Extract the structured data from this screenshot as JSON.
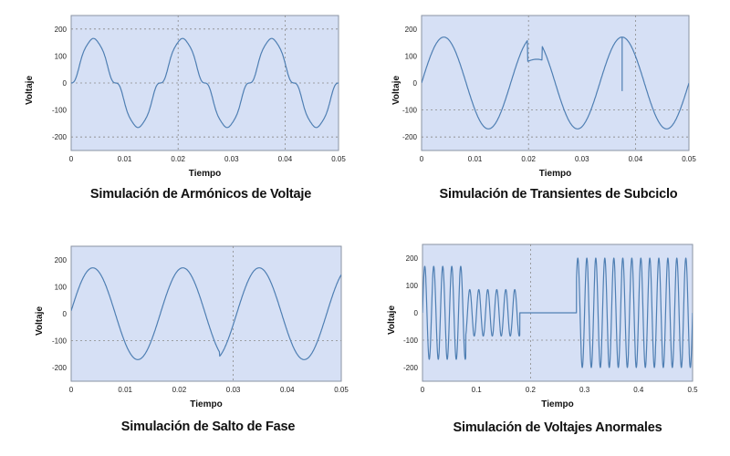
{
  "colors": {
    "plot_background": "#d6e0f5",
    "line": "#4f7fb3",
    "grid": "#8a8a8a",
    "frame": "#8a93a3"
  },
  "chart_data": [
    {
      "id": "armonicos",
      "type": "line",
      "title": "Simulación de Armónicos de Voltaje",
      "xlabel": "Tiempo",
      "ylabel": "Voltaje",
      "xlim": [
        0,
        0.05
      ],
      "ylim": [
        -250,
        250
      ],
      "xticks": [
        0,
        0.01,
        0.02,
        0.03,
        0.04,
        0.05
      ],
      "xtick_labels": [
        "0",
        "0.01",
        "0.02",
        "0.03",
        "0.04",
        "0.05"
      ],
      "yticks": [
        -200,
        -100,
        0,
        100,
        200
      ],
      "ytick_labels": [
        "-200",
        "-100",
        "0",
        "100",
        "200"
      ],
      "grid_x": [
        0.02,
        0.04
      ],
      "grid_y": [
        -200,
        0,
        200
      ],
      "series": [
        {
          "kind": "harmonic",
          "frequency_hz": 60,
          "amplitude": 150,
          "harmonics": [
            [
              3,
              20
            ],
            [
              5,
              10
            ],
            [
              7,
              5
            ]
          ]
        }
      ]
    },
    {
      "id": "transientes",
      "type": "line",
      "title": "Simulación de Transientes de Subciclo",
      "xlabel": "Tiempo",
      "ylabel": "Voltaje",
      "xlim": [
        0,
        0.05
      ],
      "ylim": [
        -250,
        250
      ],
      "xticks": [
        0,
        0.01,
        0.02,
        0.03,
        0.04,
        0.05
      ],
      "xtick_labels": [
        "0",
        "0.01",
        "0.02",
        "0.03",
        "0.04",
        "0.05"
      ],
      "yticks": [
        -200,
        -100,
        0,
        100,
        200
      ],
      "ytick_labels": [
        "-200",
        "-100",
        "0",
        "100",
        "200"
      ],
      "grid_x": [
        0.02,
        0.04
      ],
      "grid_y": [
        -200,
        -100
      ],
      "series": [
        {
          "kind": "sine",
          "frequency_hz": 60,
          "amplitude": 170,
          "notch": {
            "from": 0.0198,
            "to": 0.0225,
            "level": 80
          },
          "spike": {
            "at": 0.0375,
            "to": -30
          }
        }
      ]
    },
    {
      "id": "salto_fase",
      "type": "line",
      "title": "Simulación de Salto de Fase",
      "xlabel": "Tiempo",
      "ylabel": "Voltaje",
      "xlim": [
        0,
        0.05
      ],
      "ylim": [
        -250,
        250
      ],
      "xticks": [
        0,
        0.01,
        0.02,
        0.03,
        0.04,
        0.05
      ],
      "xtick_labels": [
        "0",
        "0.01",
        "0.02",
        "0.03",
        "0.04",
        "0.05"
      ],
      "yticks": [
        -200,
        -100,
        0,
        100,
        200
      ],
      "ytick_labels": [
        "-200",
        "-100",
        "0",
        "100",
        "200"
      ],
      "grid_x": [
        0.03
      ],
      "grid_y": [
        -100
      ],
      "series": [
        {
          "kind": "phase_jump",
          "frequency_hz": 60,
          "amplitude": 170,
          "jump_at": 0.0275,
          "peak_before": 0.004,
          "peak_after": 0.0348
        }
      ]
    },
    {
      "id": "anormales",
      "type": "line",
      "title": "Simulación de Voltajes Anormales",
      "xlabel": "Tiempo",
      "ylabel": "Voltaje",
      "xlim": [
        0,
        0.5
      ],
      "ylim": [
        -250,
        250
      ],
      "xticks": [
        0,
        0.1,
        0.2,
        0.3,
        0.4,
        0.5
      ],
      "xtick_labels": [
        "0",
        "0.1",
        "0.2",
        "0.3",
        "0.4",
        "0.5"
      ],
      "yticks": [
        -200,
        -100,
        0,
        100,
        200
      ],
      "ytick_labels": [
        "-200",
        "-100",
        "0",
        "100",
        "200"
      ],
      "grid_x": [
        0.2
      ],
      "grid_y": [
        -100
      ],
      "series": [
        {
          "kind": "segments",
          "frequency_hz": 60,
          "segments": [
            {
              "from": 0,
              "to": 0.08,
              "amplitude": 170
            },
            {
              "from": 0.08,
              "to": 0.18,
              "amplitude": 85
            },
            {
              "from": 0.18,
              "to": 0.285,
              "amplitude": 0
            },
            {
              "from": 0.285,
              "to": 0.5,
              "amplitude": 200
            }
          ]
        }
      ]
    }
  ]
}
